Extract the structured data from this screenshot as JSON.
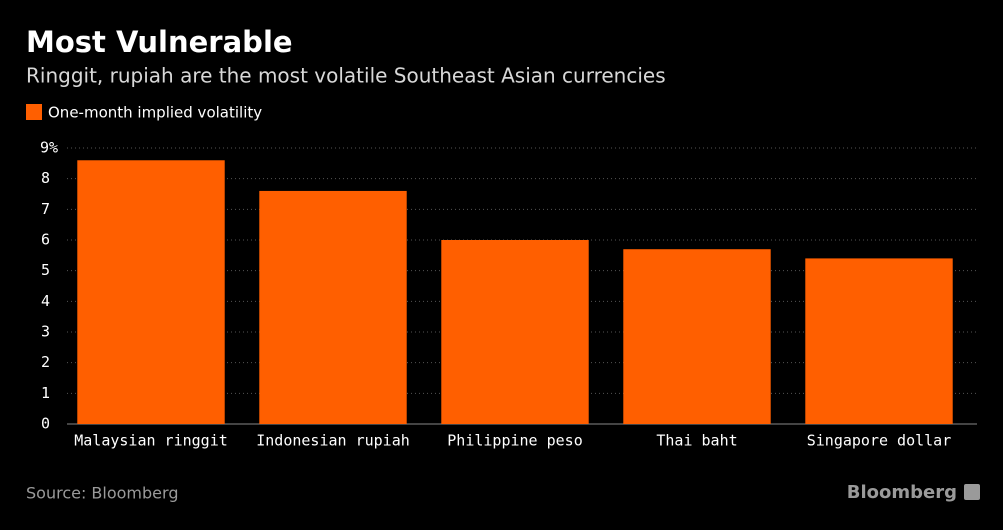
{
  "chart_data": {
    "type": "bar",
    "title": "Most Vulnerable",
    "subtitle": "Ringgit, rupiah are the most volatile Southeast Asian currencies",
    "series": [
      {
        "name": "One-month implied volatility",
        "color": "#ff5f00",
        "values": [
          8.6,
          7.6,
          6.0,
          5.7,
          5.4
        ]
      }
    ],
    "categories": [
      "Malaysian ringgit",
      "Indonesian rupiah",
      "Philippine peso",
      "Thai baht",
      "Singapore dollar"
    ],
    "ylim": [
      0,
      9
    ],
    "yticks": [
      0,
      1,
      2,
      3,
      4,
      5,
      6,
      7,
      8,
      {
        "value": 9,
        "label": "9%"
      }
    ],
    "grid": true,
    "source": "Source: Bloomberg",
    "brand": "Bloomberg"
  }
}
